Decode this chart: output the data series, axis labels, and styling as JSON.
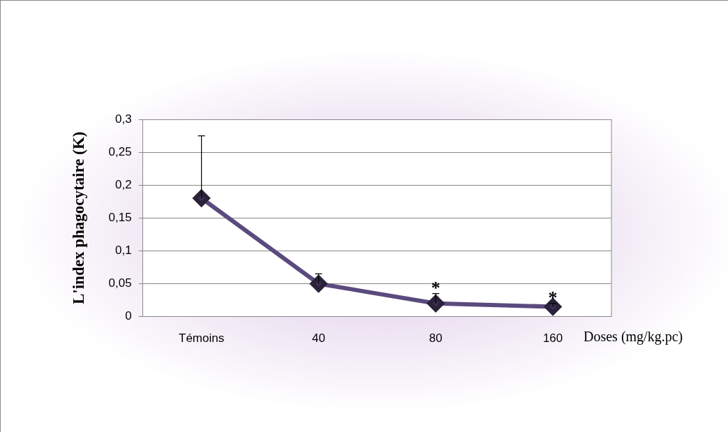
{
  "chart_data": {
    "type": "line",
    "xlabel": "Doses (mg/kg.pc)",
    "ylabel": "L'index phagocytaire (K)",
    "categories": [
      "Témoins",
      "40",
      "80",
      "160"
    ],
    "series": [
      {
        "color": "#5b4a7e",
        "values": [
          0.18,
          0.05,
          0.02,
          0.015
        ],
        "errors": [
          [
            0.18,
            0.275
          ],
          [
            0.05,
            0.065
          ],
          [
            0.02,
            0.035
          ],
          [
            0.015,
            0.02
          ]
        ]
      }
    ],
    "ylim": [
      0,
      0.3
    ],
    "yticks": [
      {
        "value": 0,
        "label": "0"
      },
      {
        "value": 0.05,
        "label": "0,05"
      },
      {
        "value": 0.1,
        "label": "0,1"
      },
      {
        "value": 0.15,
        "label": "0,15"
      },
      {
        "value": 0.2,
        "label": "0,2"
      },
      {
        "value": 0.25,
        "label": "0,25"
      },
      {
        "value": 0.3,
        "label": "0,3"
      }
    ],
    "grid": "y",
    "legend": false,
    "marker": "diamond",
    "line_style": "solid",
    "annotations": [
      {
        "text": "*",
        "x": "80",
        "y": 0.035
      },
      {
        "text": "*",
        "x": "160",
        "y": 0.02
      }
    ]
  }
}
